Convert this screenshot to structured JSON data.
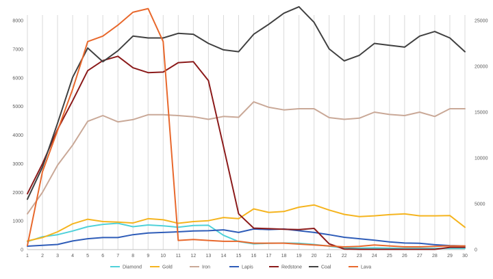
{
  "chart_data": {
    "type": "line",
    "title": "",
    "xlabel": "",
    "ylabel": "",
    "categories": [
      "1",
      "2",
      "3",
      "4",
      "5",
      "6",
      "7",
      "8",
      "9",
      "10",
      "11",
      "12",
      "13",
      "14",
      "15",
      "16",
      "17",
      "18",
      "19",
      "20",
      "21",
      "22",
      "23",
      "24",
      "25",
      "26",
      "27",
      "28",
      "29",
      "30"
    ],
    "ylim_left": [
      0,
      8000
    ],
    "yticks_left": [
      "0",
      "1000",
      "2000",
      "3000",
      "4000",
      "5000",
      "6000",
      "7000",
      "8000"
    ],
    "ylim_right": [
      0,
      25000
    ],
    "yticks_right": [
      "0",
      "5000",
      "10000",
      "15000",
      "20000",
      "25000"
    ],
    "grid": "vertical",
    "legend_position": "bottom",
    "series": [
      {
        "name": "Diamond",
        "color": "#4fd1d9",
        "axis": "left",
        "values": [
          280,
          450,
          520,
          650,
          800,
          880,
          920,
          800,
          860,
          830,
          780,
          840,
          850,
          500,
          280,
          200,
          220,
          230,
          220,
          180,
          120,
          60,
          50,
          60,
          50,
          40,
          40,
          40,
          40,
          40
        ]
      },
      {
        "name": "Gold",
        "color": "#f5b41e",
        "axis": "left",
        "values": [
          300,
          420,
          620,
          900,
          1060,
          980,
          960,
          930,
          1080,
          1040,
          920,
          980,
          1010,
          1120,
          1080,
          1420,
          1300,
          1330,
          1480,
          1560,
          1380,
          1230,
          1150,
          1180,
          1220,
          1250,
          1180,
          1180,
          1190,
          780
        ]
      },
      {
        "name": "Iron",
        "color": "#c9a897",
        "axis": "left",
        "values": [
          1250,
          2000,
          2950,
          3650,
          4480,
          4680,
          4460,
          4540,
          4710,
          4710,
          4680,
          4640,
          4550,
          4650,
          4620,
          5160,
          4970,
          4880,
          4920,
          4920,
          4610,
          4550,
          4590,
          4800,
          4720,
          4680,
          4800,
          4650,
          4920,
          4920
        ]
      },
      {
        "name": "Lapis",
        "color": "#2e5cb8",
        "axis": "left",
        "values": [
          120,
          150,
          180,
          300,
          380,
          420,
          420,
          520,
          580,
          600,
          620,
          650,
          660,
          690,
          600,
          720,
          700,
          720,
          660,
          600,
          520,
          430,
          380,
          330,
          270,
          230,
          220,
          170,
          140,
          130
        ]
      },
      {
        "name": "Redstone",
        "color": "#8b1a1a",
        "axis": "left",
        "values": [
          1950,
          3000,
          4200,
          5200,
          6250,
          6600,
          6750,
          6350,
          6180,
          6200,
          6530,
          6560,
          5900,
          3600,
          1250,
          750,
          730,
          710,
          700,
          740,
          200,
          20,
          10,
          10,
          10,
          10,
          10,
          10,
          80,
          80
        ]
      },
      {
        "name": "Coal",
        "color": "#404040",
        "axis": "right",
        "values": [
          5500,
          9000,
          13800,
          18800,
          22000,
          20500,
          21700,
          23300,
          23100,
          23100,
          23600,
          23500,
          22500,
          21800,
          21600,
          23500,
          24600,
          25800,
          26500,
          24800,
          21900,
          20600,
          21200,
          22500,
          22300,
          22100,
          23300,
          23800,
          23100,
          21600
        ]
      },
      {
        "name": "Lava",
        "color": "#e8682c",
        "axis": "right",
        "values": [
          450,
          8500,
          13000,
          17500,
          22700,
          23300,
          24500,
          25900,
          26300,
          22700,
          1000,
          1100,
          1000,
          900,
          900,
          700,
          700,
          700,
          600,
          500,
          400,
          300,
          350,
          500,
          400,
          300,
          300,
          350,
          400,
          400
        ]
      }
    ]
  }
}
